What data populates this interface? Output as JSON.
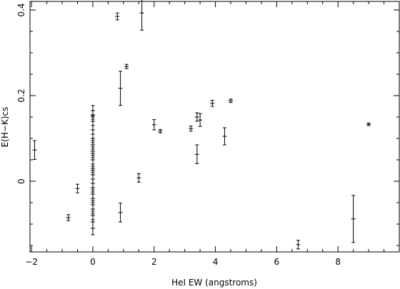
{
  "chart_data": {
    "type": "scatter",
    "title": "",
    "xlabel": "HeI EW (angstroms)",
    "ylabel": "E(H−K)cs",
    "xlim": [
      -2.05,
      10.0
    ],
    "ylim": [
      -0.165,
      0.42
    ],
    "grid": false,
    "xticks": [
      -2,
      0,
      2,
      4,
      6,
      8
    ],
    "xtick_labels": [
      "−2",
      "0",
      "2",
      "4",
      "6",
      "8"
    ],
    "yticks": [
      0,
      0.2,
      0.4
    ],
    "ytick_labels": [
      "0",
      "0.2",
      "0.4"
    ],
    "series": [
      {
        "marker": "errorbar-point",
        "color": "#000000",
        "points": [
          {
            "x": -1.9,
            "y": 0.073,
            "err": 0.022
          },
          {
            "x": -0.8,
            "y": -0.085,
            "err": 0.007
          },
          {
            "x": -0.5,
            "y": -0.017,
            "err": 0.01
          },
          {
            "x": 0.0,
            "y": 0.165,
            "err": 0.012
          },
          {
            "x": 0.0,
            "y": 0.155,
            "err": 0.01
          },
          {
            "x": 0.0,
            "y": 0.14,
            "err": 0.01
          },
          {
            "x": 0.0,
            "y": 0.12,
            "err": 0.01
          },
          {
            "x": 0.0,
            "y": 0.1,
            "err": 0.01
          },
          {
            "x": 0.0,
            "y": 0.085,
            "err": 0.01
          },
          {
            "x": 0.0,
            "y": 0.07,
            "err": 0.01
          },
          {
            "x": 0.0,
            "y": 0.065,
            "err": 0.01
          },
          {
            "x": 0.0,
            "y": 0.05,
            "err": 0.01
          },
          {
            "x": 0.0,
            "y": 0.03,
            "err": 0.01
          },
          {
            "x": 0.0,
            "y": 0.025,
            "err": 0.01
          },
          {
            "x": 0.0,
            "y": 0.015,
            "err": 0.01
          },
          {
            "x": 0.0,
            "y": 0.005,
            "err": 0.01
          },
          {
            "x": 0.0,
            "y": -0.005,
            "err": 0.01
          },
          {
            "x": 0.0,
            "y": -0.015,
            "err": 0.01
          },
          {
            "x": 0.0,
            "y": -0.03,
            "err": 0.01
          },
          {
            "x": 0.0,
            "y": -0.04,
            "err": 0.01
          },
          {
            "x": 0.0,
            "y": -0.055,
            "err": 0.01
          },
          {
            "x": 0.0,
            "y": -0.065,
            "err": 0.01
          },
          {
            "x": 0.0,
            "y": -0.08,
            "err": 0.01
          },
          {
            "x": 0.0,
            "y": -0.095,
            "err": 0.015
          },
          {
            "x": 0.0,
            "y": -0.11,
            "err": 0.015
          },
          {
            "x": 0.8,
            "y": 0.385,
            "err": 0.008
          },
          {
            "x": 0.9,
            "y": 0.217,
            "err": 0.04
          },
          {
            "x": 0.9,
            "y": -0.073,
            "err": 0.022
          },
          {
            "x": 1.1,
            "y": 0.268,
            "err": 0.005
          },
          {
            "x": 1.5,
            "y": 0.008,
            "err": 0.01
          },
          {
            "x": 1.6,
            "y": 0.393,
            "err": 0.04
          },
          {
            "x": 2.0,
            "y": 0.132,
            "err": 0.012
          },
          {
            "x": 2.2,
            "y": 0.117,
            "err": 0.004
          },
          {
            "x": 3.2,
            "y": 0.123,
            "err": 0.006
          },
          {
            "x": 3.4,
            "y": 0.15,
            "err": 0.01
          },
          {
            "x": 3.4,
            "y": 0.063,
            "err": 0.022
          },
          {
            "x": 3.5,
            "y": 0.143,
            "err": 0.015
          },
          {
            "x": 3.9,
            "y": 0.182,
            "err": 0.007
          },
          {
            "x": 4.3,
            "y": 0.105,
            "err": 0.02
          },
          {
            "x": 4.5,
            "y": 0.188,
            "err": 0.004
          },
          {
            "x": 6.7,
            "y": -0.148,
            "err": 0.01
          },
          {
            "x": 8.5,
            "y": -0.088,
            "err": 0.055
          },
          {
            "x": 9.0,
            "y": 0.133,
            "err": 0.003
          }
        ]
      }
    ]
  }
}
